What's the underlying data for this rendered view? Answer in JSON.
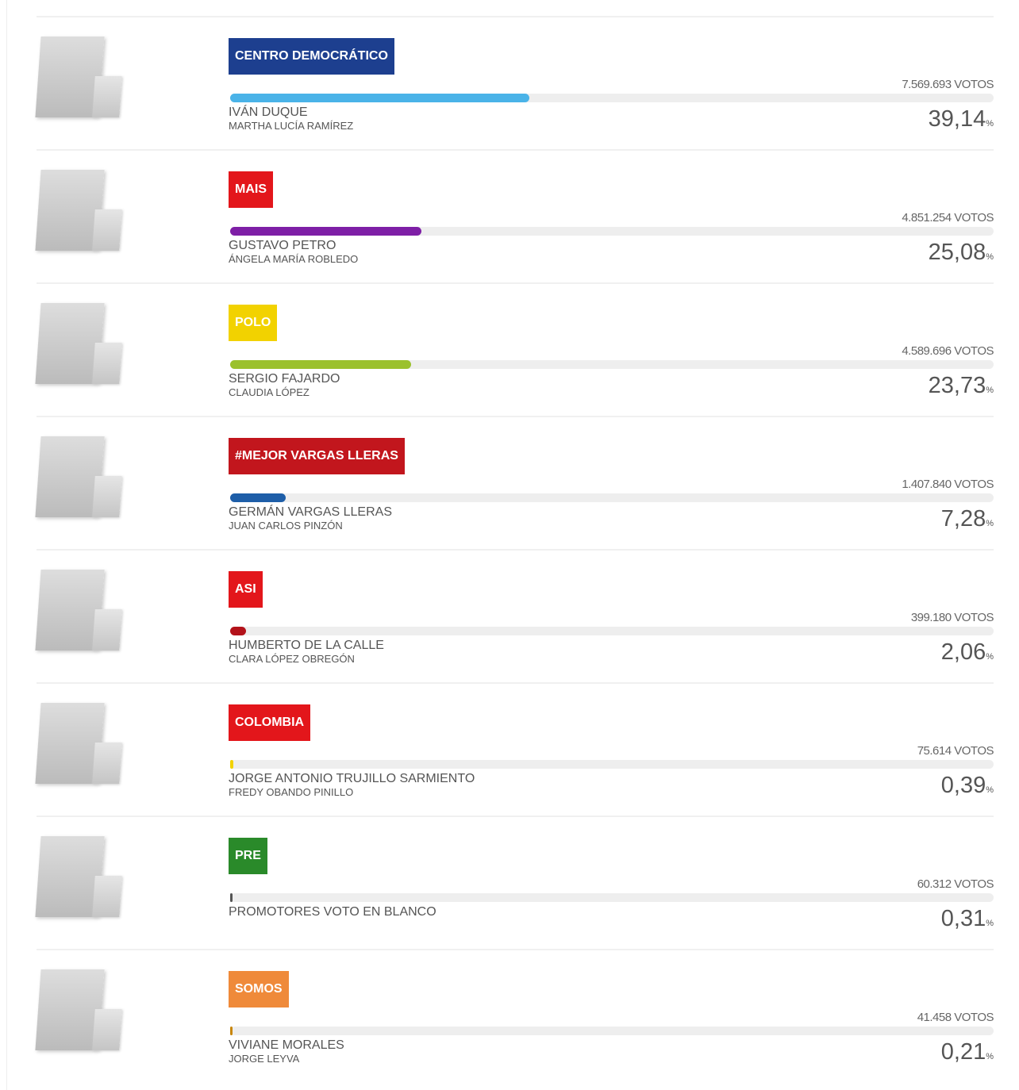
{
  "votes_unit": "VOTOS",
  "percent_unit": "%",
  "candidates": [
    {
      "name": "IVÁN DUQUE",
      "mate": "MARTHA LUCÍA RAMÍREZ",
      "votes": "7.569.693",
      "percent": 39.14,
      "percent_label": "39,14",
      "color": "#4ab3e8",
      "logo_text": "CENTRO DEMOCRÁTICO",
      "logo_color": "#1d3f8f"
    },
    {
      "name": "GUSTAVO PETRO",
      "mate": "ÁNGELA MARÍA ROBLEDO",
      "votes": "4.851.254",
      "percent": 25.08,
      "percent_label": "25,08",
      "color": "#7e1fa6",
      "logo_text": "MAIS",
      "logo_color": "#e3161b"
    },
    {
      "name": "SERGIO FAJARDO",
      "mate": "CLAUDIA LÓPEZ",
      "votes": "4.589.696",
      "percent": 23.73,
      "percent_label": "23,73",
      "color": "#9bc12d",
      "logo_text": "POLO",
      "logo_color": "#f2d200"
    },
    {
      "name": "GERMÁN VARGAS LLERAS",
      "mate": "JUAN CARLOS PINZÓN",
      "votes": "1.407.840",
      "percent": 7.28,
      "percent_label": "7,28",
      "color": "#1e5ea8",
      "logo_text": "#MEJOR VARGAS LLERAS",
      "logo_color": "#c2161d"
    },
    {
      "name": "HUMBERTO DE LA CALLE",
      "mate": "CLARA LÓPEZ OBREGÓN",
      "votes": "399.180",
      "percent": 2.06,
      "percent_label": "2,06",
      "color": "#b3121a",
      "logo_text": "ASI",
      "logo_color": "#e3161b"
    },
    {
      "name": "JORGE ANTONIO TRUJILLO SARMIENTO",
      "mate": "FREDY OBANDO PINILLO",
      "votes": "75.614",
      "percent": 0.39,
      "percent_label": "0,39",
      "color": "#f2d200",
      "logo_text": "COLOMBIA",
      "logo_color": "#e3161b"
    },
    {
      "name": "PROMOTORES VOTO EN BLANCO",
      "mate": null,
      "votes": "60.312",
      "percent": 0.31,
      "percent_label": "0,31",
      "color": "#555555",
      "logo_text": "PRE",
      "logo_color": "#2a8a2a"
    },
    {
      "name": "VIVIANE MORALES",
      "mate": "JORGE LEYVA",
      "votes": "41.458",
      "percent": 0.21,
      "percent_label": "0,21",
      "color": "#c8860a",
      "logo_text": "SOMOS",
      "logo_color": "#ef8a3a"
    }
  ]
}
